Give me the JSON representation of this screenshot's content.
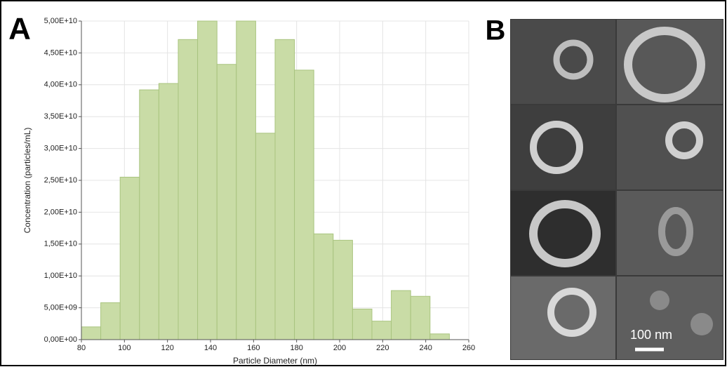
{
  "chart_data": {
    "type": "histogram",
    "x_label": "Particle Diameter (nm)",
    "y_label": "Concentration (particles/mL)",
    "bins": [
      80,
      89,
      98,
      107,
      116,
      125,
      134,
      143,
      152,
      161,
      170,
      179,
      188,
      197,
      206,
      215,
      224,
      233,
      242,
      251
    ],
    "values": [
      2000000000,
      5800000000,
      25500000000,
      39200000000,
      40200000000,
      47100000000,
      50000000000,
      43200000000,
      50000000000,
      32400000000,
      47100000000,
      42300000000,
      16600000000,
      15600000000,
      4800000000,
      2900000000,
      7700000000,
      6800000000,
      900000000
    ],
    "color": "#c9dca6",
    "xlim": [
      80,
      260
    ],
    "xticks": [
      80,
      100,
      120,
      140,
      160,
      180,
      200,
      220,
      240,
      260
    ],
    "ylim": [
      0,
      50000000000
    ],
    "yticks": [
      {
        "value": 0,
        "label": "0,00E+00"
      },
      {
        "value": 5000000000,
        "label": "5,00E+09"
      },
      {
        "value": 10000000000,
        "label": "1,00E+10"
      },
      {
        "value": 15000000000,
        "label": "1,50E+10"
      },
      {
        "value": 20000000000,
        "label": "2,00E+10"
      },
      {
        "value": 25000000000,
        "label": "2,50E+10"
      },
      {
        "value": 30000000000,
        "label": "3,00E+10"
      },
      {
        "value": 35000000000,
        "label": "3,50E+10"
      },
      {
        "value": 40000000000,
        "label": "4,00E+10"
      },
      {
        "value": 45000000000,
        "label": "4,50E+10"
      },
      {
        "value": 50000000000,
        "label": "5,00E+10"
      }
    ],
    "grid": true
  },
  "panels": {
    "a_label": "A",
    "b_label": "B",
    "scale_bar": "100 nm"
  }
}
